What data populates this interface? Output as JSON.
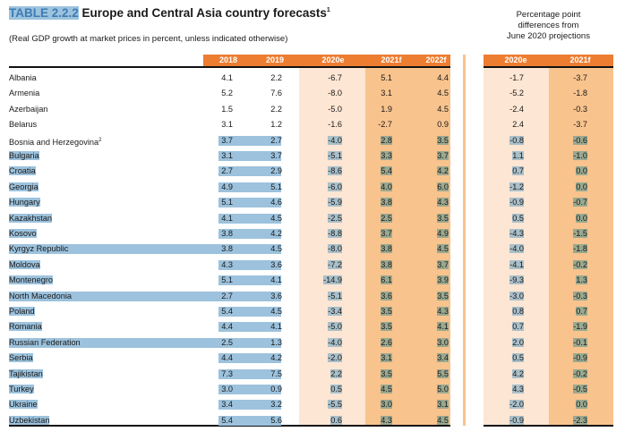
{
  "title": {
    "number": "TABLE 2.2.2",
    "text": " Europe and Central Asia country forecasts",
    "footnote": "1"
  },
  "subtitle": "(Real GDP growth at market prices in percent, unless indicated otherwise)",
  "right_title": [
    "Percentage point",
    "differences from",
    "June 2020 projections"
  ],
  "colors": {
    "header_orange": "#ed7d31",
    "col_light": "#fde6d3",
    "col_dark": "#f8c38d",
    "selection": "#9cc2dd"
  },
  "columns": {
    "main": [
      "2018",
      "2019",
      "2020e",
      "2021f",
      "2022f"
    ],
    "diff": [
      "2020e",
      "2021f"
    ]
  },
  "rows": [
    {
      "name": "Albania",
      "sup": "",
      "v": [
        "4.1",
        "2.2",
        "-6.7",
        "5.1",
        "4.4"
      ],
      "d": [
        "-1.7",
        "-3.7"
      ],
      "sel": false
    },
    {
      "name": "Armenia",
      "sup": "",
      "v": [
        "5.2",
        "7.6",
        "-8.0",
        "3.1",
        "4.5"
      ],
      "d": [
        "-5.2",
        "-1.8"
      ],
      "sel": false
    },
    {
      "name": "Azerbaijan",
      "sup": "",
      "v": [
        "1.5",
        "2.2",
        "-5.0",
        "1.9",
        "4.5"
      ],
      "d": [
        "-2.4",
        "-0.3"
      ],
      "sel": false
    },
    {
      "name": "Belarus",
      "sup": "",
      "v": [
        "3.1",
        "1.2",
        "-1.6",
        "-2.7",
        "0.9"
      ],
      "d": [
        "2.4",
        "-3.7"
      ],
      "sel": false
    },
    {
      "name": "Bosnia and Herzegovina",
      "sup": "2",
      "v": [
        "3.7",
        "2.7",
        "-4.0",
        "2.8",
        "3.5"
      ],
      "d": [
        "-0.8",
        "-0.6"
      ],
      "sel": "partial"
    },
    {
      "name": "Bulgaria",
      "sup": "",
      "v": [
        "3.1",
        "3.7",
        "-5.1",
        "3.3",
        "3.7"
      ],
      "d": [
        "1.1",
        "-1.0"
      ],
      "sel": true
    },
    {
      "name": "Croatia",
      "sup": "",
      "v": [
        "2.7",
        "2.9",
        "-8.6",
        "5.4",
        "4.2"
      ],
      "d": [
        "0.7",
        "0.0"
      ],
      "sel": true
    },
    {
      "name": "Georgia",
      "sup": "",
      "v": [
        "4.9",
        "5.1",
        "-6.0",
        "4.0",
        "6.0"
      ],
      "d": [
        "-1.2",
        "0.0"
      ],
      "sel": true
    },
    {
      "name": "Hungary",
      "sup": "",
      "v": [
        "5.1",
        "4.6",
        "-5.9",
        "3.8",
        "4.3"
      ],
      "d": [
        "-0.9",
        "-0.7"
      ],
      "sel": true
    },
    {
      "name": "Kazakhstan",
      "sup": "",
      "v": [
        "4.1",
        "4.5",
        "-2.5",
        "2.5",
        "3.5"
      ],
      "d": [
        "0.5",
        "0.0"
      ],
      "sel": true
    },
    {
      "name": "Kosovo",
      "sup": "",
      "v": [
        "3.8",
        "4.2",
        "-8.8",
        "3.7",
        "4.9"
      ],
      "d": [
        "-4.3",
        "-1.5"
      ],
      "sel": true
    },
    {
      "name": "Kyrgyz Republic",
      "sup": "",
      "v": [
        "3.8",
        "4.5",
        "-8.0",
        "3.8",
        "4.5"
      ],
      "d": [
        "-4.0",
        "-1.8"
      ],
      "sel": "full"
    },
    {
      "name": "Moldova",
      "sup": "",
      "v": [
        "4.3",
        "3.6",
        "-7.2",
        "3.8",
        "3.7"
      ],
      "d": [
        "-4.1",
        "-0.2"
      ],
      "sel": true
    },
    {
      "name": "Montenegro",
      "sup": "",
      "v": [
        "5.1",
        "4.1",
        "-14.9",
        "6.1",
        "3.9"
      ],
      "d": [
        "-9.3",
        "1.3"
      ],
      "sel": true
    },
    {
      "name": "North Macedonia",
      "sup": "",
      "v": [
        "2.7",
        "3.6",
        "-5.1",
        "3.6",
        "3.5"
      ],
      "d": [
        "-3.0",
        "-0.3"
      ],
      "sel": "full"
    },
    {
      "name": "Poland",
      "sup": "",
      "v": [
        "5.4",
        "4.5",
        "-3.4",
        "3.5",
        "4.3"
      ],
      "d": [
        "0.8",
        "0.7"
      ],
      "sel": true
    },
    {
      "name": "Romania",
      "sup": "",
      "v": [
        "4.4",
        "4.1",
        "-5.0",
        "3.5",
        "4.1"
      ],
      "d": [
        "0.7",
        "-1.9"
      ],
      "sel": true
    },
    {
      "name": "Russian Federation",
      "sup": "",
      "v": [
        "2.5",
        "1.3",
        "-4.0",
        "2.6",
        "3.0"
      ],
      "d": [
        "2.0",
        "-0.1"
      ],
      "sel": "full"
    },
    {
      "name": "Serbia",
      "sup": "",
      "v": [
        "4.4",
        "4.2",
        "-2.0",
        "3.1",
        "3.4"
      ],
      "d": [
        "0.5",
        "-0.9"
      ],
      "sel": true
    },
    {
      "name": "Tajikistan",
      "sup": "",
      "v": [
        "7.3",
        "7.5",
        "2.2",
        "3.5",
        "5.5"
      ],
      "d": [
        "4.2",
        "-0.2"
      ],
      "sel": true
    },
    {
      "name": "Turkey",
      "sup": "",
      "v": [
        "3.0",
        "0.9",
        "0.5",
        "4.5",
        "5.0"
      ],
      "d": [
        "4.3",
        "-0.5"
      ],
      "sel": true
    },
    {
      "name": "Ukraine",
      "sup": "",
      "v": [
        "3.4",
        "3.2",
        "-5.5",
        "3.0",
        "3.1"
      ],
      "d": [
        "-2.0",
        "0.0"
      ],
      "sel": true
    },
    {
      "name": "Uzbekistan",
      "sup": "",
      "v": [
        "5.4",
        "5.6",
        "0.6",
        "4.3",
        "4.5"
      ],
      "d": [
        "-0.9",
        "-2.3"
      ],
      "sel": true
    }
  ]
}
